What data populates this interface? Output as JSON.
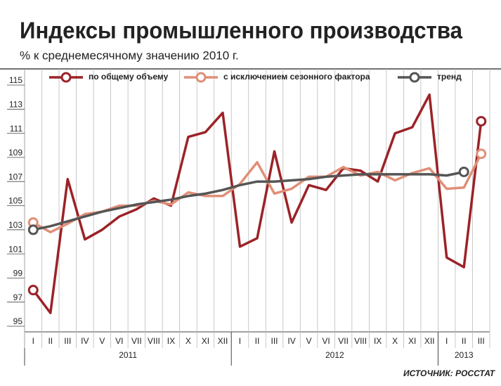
{
  "chart_data": {
    "type": "line",
    "title": "Индексы промышленного производства",
    "subtitle": "% к среднемесячному значению 2010 г.",
    "source": "ИСТОЧНИК: РОССТАТ",
    "categories": [
      "I",
      "II",
      "III",
      "IV",
      "V",
      "VI",
      "VII",
      "VIII",
      "IX",
      "X",
      "XI",
      "XII",
      "I",
      "II",
      "III",
      "IV",
      "V",
      "VI",
      "VII",
      "VIII",
      "IX",
      "X",
      "XI",
      "XII",
      "I",
      "II",
      "III"
    ],
    "year_labels": [
      "2011",
      "2012",
      "2013"
    ],
    "ylim": [
      95,
      115
    ],
    "yticks": [
      95,
      97,
      99,
      101,
      103,
      105,
      107,
      109,
      111,
      113,
      115
    ],
    "grid": true,
    "series": [
      {
        "name": "по общему объему",
        "color": "#9b2328",
        "values": [
          98.0,
          96.1,
          107.2,
          102.2,
          103.0,
          104.1,
          104.7,
          105.6,
          105.0,
          110.7,
          111.1,
          112.7,
          101.6,
          102.3,
          109.5,
          103.6,
          106.7,
          106.3,
          108.1,
          107.9,
          107.0,
          111.0,
          111.5,
          114.2,
          100.7,
          99.9,
          112.0
        ]
      },
      {
        "name": "с исключением сезонного фактора",
        "color": "#e08f78",
        "values": [
          103.6,
          102.8,
          103.5,
          104.3,
          104.5,
          105.0,
          105.0,
          105.4,
          105.1,
          106.1,
          105.8,
          105.8,
          106.8,
          108.6,
          106.0,
          106.4,
          107.4,
          107.4,
          108.2,
          107.5,
          107.8,
          107.1,
          107.7,
          108.1,
          106.4,
          106.5,
          109.3
        ]
      },
      {
        "name": "тренд",
        "color": "#555555",
        "values": [
          103.0,
          103.3,
          103.7,
          104.1,
          104.5,
          104.8,
          105.1,
          105.3,
          105.5,
          105.8,
          106.0,
          106.3,
          106.7,
          107.0,
          107.0,
          107.1,
          107.2,
          107.4,
          107.5,
          107.6,
          107.6,
          107.6,
          107.6,
          107.6,
          107.5,
          107.8,
          null
        ]
      }
    ]
  }
}
